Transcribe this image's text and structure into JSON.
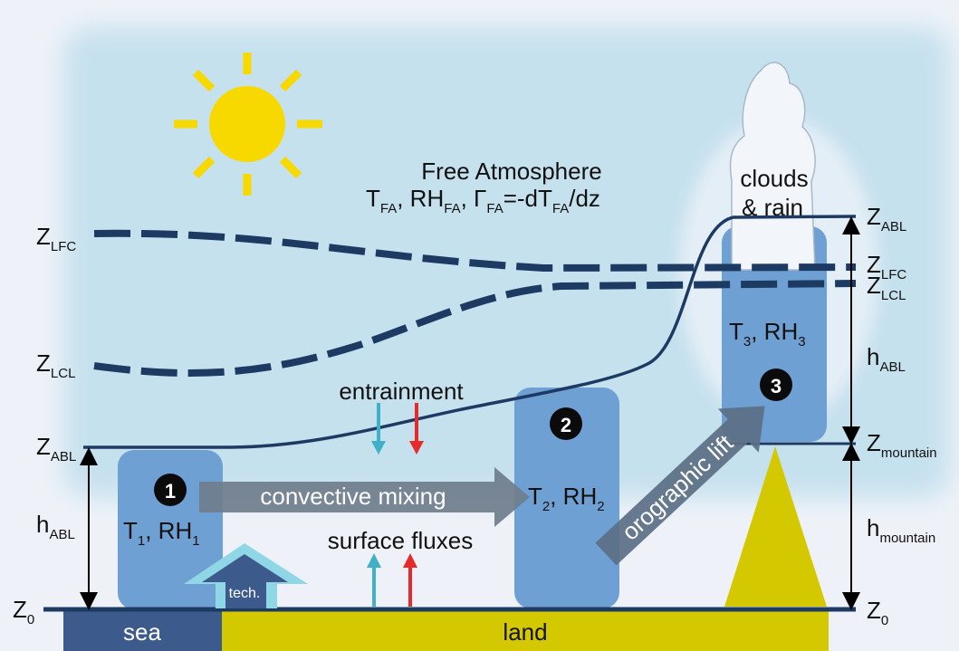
{
  "free_atmosphere": {
    "title": "Free Atmosphere",
    "eq": {
      "T": "T",
      "T_sub": "FA",
      "RH": ", RH",
      "RH_sub": "FA",
      "G": ", Γ",
      "G_sub": "FA",
      "rest": "=-dT",
      "rest_sub": "FA",
      "tail": "/dz"
    }
  },
  "clouds": {
    "line1": "clouds",
    "line2": "& rain"
  },
  "left_axis": {
    "z_lfc": {
      "main": "Z",
      "sub": "LFC"
    },
    "z_lcl": {
      "main": "Z",
      "sub": "LCL"
    },
    "z_abl": {
      "main": "Z",
      "sub": "ABL"
    },
    "h_abl": {
      "main": "h",
      "sub": "ABL"
    },
    "z0": {
      "main": "Z",
      "sub": "0"
    }
  },
  "right_axis": {
    "z_abl": {
      "main": "Z",
      "sub": "ABL"
    },
    "z_lfc": {
      "main": "Z",
      "sub": "LFC"
    },
    "z_lcl": {
      "main": "Z",
      "sub": "LCL"
    },
    "h_abl": {
      "main": "h",
      "sub": "ABL"
    },
    "z_mountain": {
      "main": "Z",
      "sub": "mountain"
    },
    "h_mountain": {
      "main": "h",
      "sub": "mountain"
    },
    "z0": {
      "main": "Z",
      "sub": "0"
    }
  },
  "boxes": [
    {
      "num": "1",
      "T": "T",
      "T_sub": "1",
      "RH": ", RH",
      "RH_sub": "1"
    },
    {
      "num": "2",
      "T": "T",
      "T_sub": "2",
      "RH": ", RH",
      "RH_sub": "2"
    },
    {
      "num": "3",
      "T": "T",
      "T_sub": "3",
      "RH": ", RH",
      "RH_sub": "3"
    }
  ],
  "labels": {
    "entrainment": "entrainment",
    "convective_mixing": "convective mixing",
    "surface_fluxes": "surface fluxes",
    "orographic_lift": "orographic lift",
    "tech": "tech.",
    "sea": "sea",
    "land": "land"
  },
  "colors": {
    "sky": "#c9e2ee",
    "box": "#6fa0d3",
    "line": "#1d3a63",
    "land": "#d4c800",
    "sea": "#3c5a8c",
    "sun": "#f7d900",
    "arrow_gray": "#6f7d8c",
    "flux_cyan": "#3fb0c8",
    "flux_red": "#e62a2a",
    "tech_arrow": "#8fd6e6"
  }
}
